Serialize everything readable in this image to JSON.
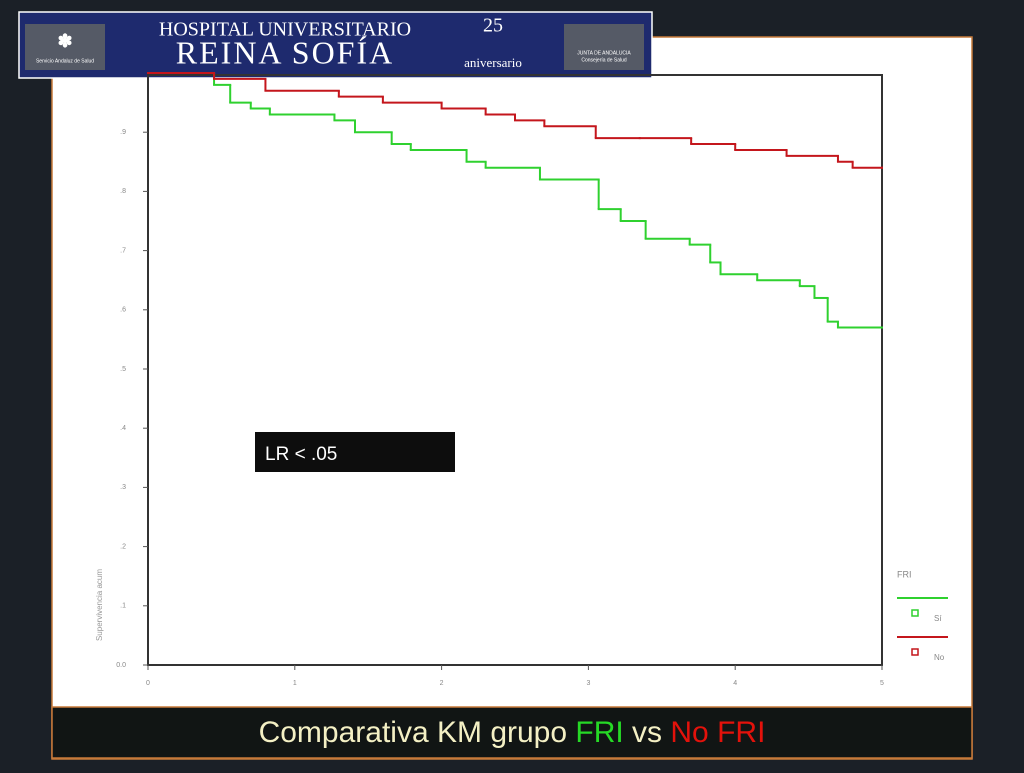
{
  "header": {
    "line1": "HOSPITAL UNIVERSITARIO",
    "line2": "REINA SOFÍA",
    "anniversary_number": "25",
    "anniversary_text": "aniversario",
    "left_logo": "Servicio Andaluz de Salud",
    "right_logo_1": "JUNTA DE ANDALUCIA",
    "right_logo_2": "Consejería de Salud"
  },
  "chart_data": {
    "type": "step",
    "y_label": "Supervivencia acum",
    "annotation": "LR < .05",
    "legend_title": "FRI",
    "xlim": [
      0,
      5
    ],
    "xticks": [
      0,
      1,
      2,
      3,
      4,
      5
    ],
    "ylim": [
      0,
      1
    ],
    "yticks": [
      {
        "value": 0,
        "label": "0.0"
      },
      {
        "value": 0.1,
        "label": ".1"
      },
      {
        "value": 0.2,
        "label": ".2"
      },
      {
        "value": 0.3,
        "label": ".3"
      },
      {
        "value": 0.4,
        "label": ".4"
      },
      {
        "value": 0.5,
        "label": ".5"
      },
      {
        "value": 0.6,
        "label": ".6"
      },
      {
        "value": 0.7,
        "label": ".7"
      },
      {
        "value": 0.8,
        "label": ".8"
      },
      {
        "value": 0.9,
        "label": ".9"
      }
    ],
    "series": [
      {
        "name": "Sí",
        "color": "#2fd12f",
        "x": [
          0,
          0.45,
          0.56,
          0.7,
          0.83,
          1.27,
          1.41,
          1.66,
          1.79,
          2.17,
          2.3,
          2.67,
          3.07,
          3.22,
          3.39,
          3.69,
          3.83,
          3.9,
          4.15,
          4.44,
          4.54,
          4.63,
          4.7,
          5
        ],
        "values": [
          1,
          0.98,
          0.95,
          0.94,
          0.93,
          0.92,
          0.9,
          0.88,
          0.87,
          0.85,
          0.84,
          0.82,
          0.77,
          0.75,
          0.72,
          0.71,
          0.68,
          0.66,
          0.65,
          0.64,
          0.62,
          0.58,
          0.57,
          0.57
        ]
      },
      {
        "name": "No",
        "color": "#c4161c",
        "x": [
          0,
          0.45,
          0.8,
          1.3,
          1.6,
          2,
          2.3,
          2.5,
          2.7,
          3.05,
          3.35,
          3.7,
          4,
          4.35,
          4.7,
          4.8,
          5
        ],
        "values": [
          1,
          0.99,
          0.97,
          0.96,
          0.95,
          0.94,
          0.93,
          0.92,
          0.91,
          0.89,
          0.89,
          0.88,
          0.87,
          0.86,
          0.85,
          0.84,
          0.84
        ]
      }
    ]
  },
  "slide_title_parts": [
    {
      "text": "Comparativa KM grupo ",
      "color": "#f4f0c4"
    },
    {
      "text": "FRI",
      "color": "#26d926"
    },
    {
      "text": " vs ",
      "color": "#f4f0c4"
    },
    {
      "text": "No FRI",
      "color": "#e3120b"
    }
  ]
}
